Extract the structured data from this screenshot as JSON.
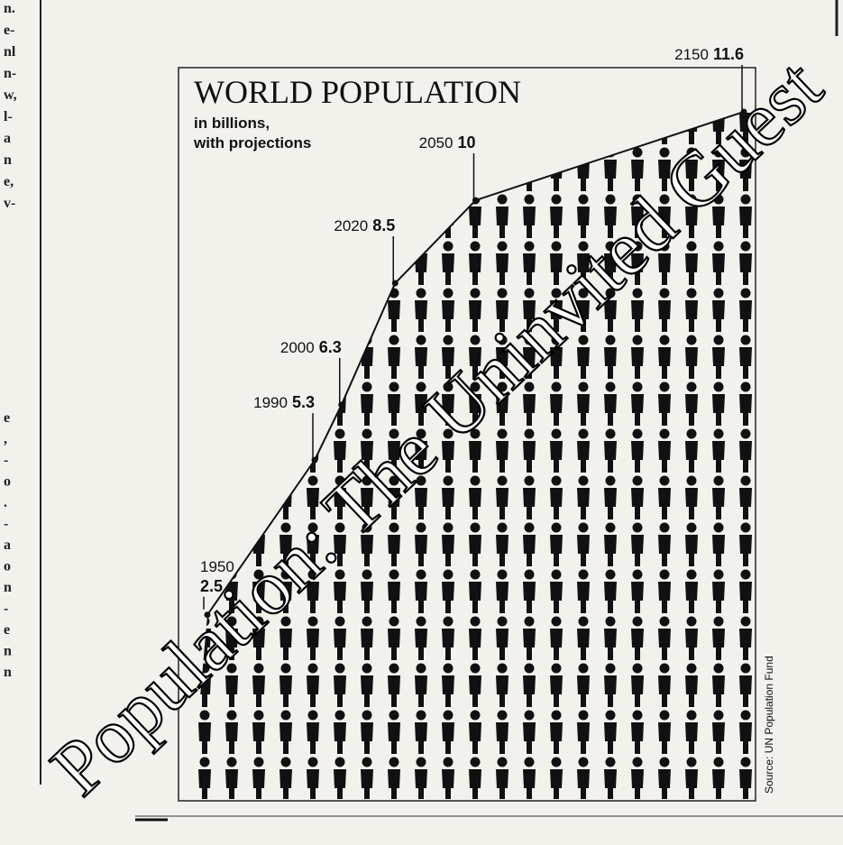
{
  "chart_data": {
    "type": "pictogram-area",
    "title": "WORLD POPULATION",
    "subtitle_lines": [
      "in billions,",
      "with projections"
    ],
    "x": [
      1950,
      1990,
      2000,
      2020,
      2050,
      2150
    ],
    "values": [
      2.5,
      5.3,
      6.3,
      8.5,
      10,
      11.6
    ],
    "color": "#111111",
    "source": "Source: UN Population Fund"
  },
  "overlay_title": "Population: The Uninvited Guest",
  "margin_fragments": [
    "n.",
    "e-",
    "nl",
    "n-",
    "w,",
    "l-",
    "a",
    "n",
    "e,",
    "v-",
    "e",
    ",",
    "-",
    "o",
    ".",
    "-",
    "a",
    "o",
    "n",
    "-",
    "e",
    "n",
    "n"
  ]
}
